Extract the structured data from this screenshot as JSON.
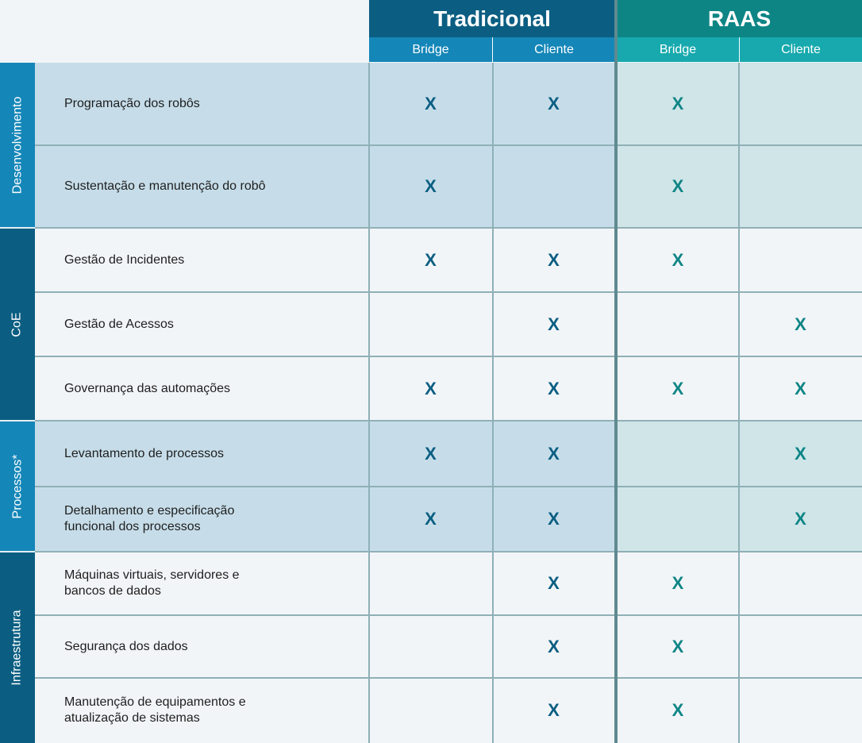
{
  "colors": {
    "tradicional_header": "#0b5e82",
    "tradicional_sub": "#1486b8",
    "raas_header": "#0e8585",
    "raas_sub": "#17a9ad",
    "mark_tradicional": "#0b5e82",
    "mark_raas": "#0e8585"
  },
  "header": {
    "tradicional": "Tradicional",
    "raas": "RAAS",
    "columns": [
      "Bridge",
      "Cliente",
      "Bridge",
      "Cliente"
    ]
  },
  "groups": [
    {
      "label": "Desenvolvimento"
    },
    {
      "label": "CoE"
    },
    {
      "label": "Processos*"
    },
    {
      "label": "Infraestrutura"
    }
  ],
  "rows": [
    {
      "label": "Programação dos robôs",
      "marks": [
        "X",
        "X",
        "X",
        ""
      ]
    },
    {
      "label": "Sustentação e manutenção do robô",
      "marks": [
        "X",
        "",
        "X",
        ""
      ]
    },
    {
      "label": "Gestão de Incidentes",
      "marks": [
        "X",
        "X",
        "X",
        ""
      ]
    },
    {
      "label": "Gestão de Acessos",
      "marks": [
        "",
        "X",
        "",
        "X"
      ]
    },
    {
      "label": "Governança das automações",
      "marks": [
        "X",
        "X",
        "X",
        "X"
      ]
    },
    {
      "label": "Levantamento de processos",
      "marks": [
        "X",
        "X",
        "",
        "X"
      ]
    },
    {
      "label": "Detalhamento e especificação\nfuncional dos processos",
      "marks": [
        "X",
        "X",
        "",
        "X"
      ]
    },
    {
      "label": "Máquinas virtuais, servidores e\nbancos de dados",
      "marks": [
        "",
        "X",
        "X",
        ""
      ]
    },
    {
      "label": "Segurança dos dados",
      "marks": [
        "",
        "X",
        "X",
        ""
      ]
    },
    {
      "label": "Manutenção de equipamentos e\natualização de sistemas",
      "marks": [
        "",
        "X",
        "X",
        ""
      ]
    }
  ]
}
